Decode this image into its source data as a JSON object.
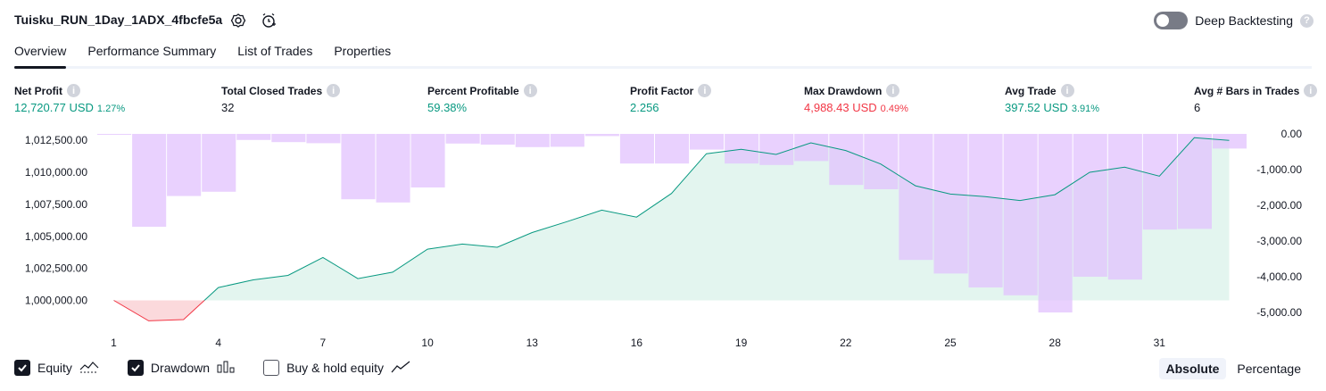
{
  "header": {
    "title": "Tuisku_RUN_1Day_1ADX_4fbcfe5a",
    "deep_backtesting_label": "Deep Backtesting",
    "help_glyph": "?"
  },
  "tabs": [
    {
      "label": "Overview",
      "active": true
    },
    {
      "label": "Performance Summary",
      "active": false
    },
    {
      "label": "List of Trades",
      "active": false
    },
    {
      "label": "Properties",
      "active": false
    }
  ],
  "metrics": [
    {
      "label": "Net Profit",
      "value": "12,720.77 USD",
      "pct": "1.27%",
      "color": "#089981"
    },
    {
      "label": "Total Closed Trades",
      "value": "32",
      "pct": "",
      "color": "#131722"
    },
    {
      "label": "Percent Profitable",
      "value": "59.38%",
      "pct": "",
      "color": "#089981"
    },
    {
      "label": "Profit Factor",
      "value": "2.256",
      "pct": "",
      "color": "#089981"
    },
    {
      "label": "Max Drawdown",
      "value": "4,988.43 USD",
      "pct": "0.49%",
      "color": "#f23645"
    },
    {
      "label": "Avg Trade",
      "value": "397.52 USD",
      "pct": "3.91%",
      "color": "#089981"
    },
    {
      "label": "Avg # Bars in Trades",
      "value": "6",
      "pct": "",
      "color": "#131722"
    }
  ],
  "chart_data": {
    "type": "line",
    "x": [
      1,
      2,
      3,
      4,
      5,
      6,
      7,
      8,
      9,
      10,
      11,
      12,
      13,
      14,
      15,
      16,
      17,
      18,
      19,
      20,
      21,
      22,
      23,
      24,
      25,
      26,
      27,
      28,
      29,
      30,
      31,
      32,
      33
    ],
    "x_ticks": [
      "1",
      "4",
      "7",
      "10",
      "13",
      "16",
      "19",
      "22",
      "25",
      "28",
      "31"
    ],
    "y_left_ticks": [
      "1,012,500.00",
      "1,010,000.00",
      "1,007,500.00",
      "1,005,000.00",
      "1,002,500.00",
      "1,000,000.00"
    ],
    "y_left_range": [
      998500,
      1013000
    ],
    "y_right_ticks": [
      "0.00",
      "-1,000.00",
      "-2,000.00",
      "-3,000.00",
      "-4,000.00",
      "-5,000.00"
    ],
    "y_right_range": [
      -5200,
      0
    ],
    "series": [
      {
        "name": "Equity",
        "values": [
          1000000,
          998400,
          998500,
          1001000,
          1001600,
          1001950,
          1003350,
          1001700,
          1002200,
          1004000,
          1004400,
          1004150,
          1005300,
          1006150,
          1007050,
          1006500,
          1008350,
          1011450,
          1011800,
          1011400,
          1012300,
          1011700,
          1010650,
          1008950,
          1008300,
          1008100,
          1007800,
          1008250,
          1010000,
          1010400,
          1009700,
          1012700,
          1012500
        ],
        "color": "#089981"
      },
      {
        "name": "Drawdown",
        "values": [
          0,
          -2600,
          -1740,
          -1620,
          -170,
          -230,
          -260,
          -1830,
          -1920,
          -1500,
          -270,
          -300,
          -370,
          -360,
          -60,
          -830,
          -830,
          -440,
          -830,
          -870,
          -760,
          -1430,
          -1550,
          -3530,
          -3910,
          -4300,
          -4520,
          -5000,
          -4000,
          -4080,
          -2680,
          -2660,
          -410
        ],
        "color": "#ce93f8"
      }
    ],
    "colors": {
      "equity_line": "#089981",
      "equity_fill": "#e3f5ef",
      "loss_line": "#f23645",
      "loss_fill": "#fbd9dc",
      "drawdown_bar": "#e1c2fd",
      "drawdown_overlap": "#b9b5ea"
    }
  },
  "legend": {
    "equity": {
      "label": "Equity",
      "checked": true
    },
    "drawdown": {
      "label": "Drawdown",
      "checked": true
    },
    "buyhold": {
      "label": "Buy & hold equity",
      "checked": false
    }
  },
  "view_mode": {
    "absolute": "Absolute",
    "percentage": "Percentage",
    "selected": "Absolute"
  }
}
